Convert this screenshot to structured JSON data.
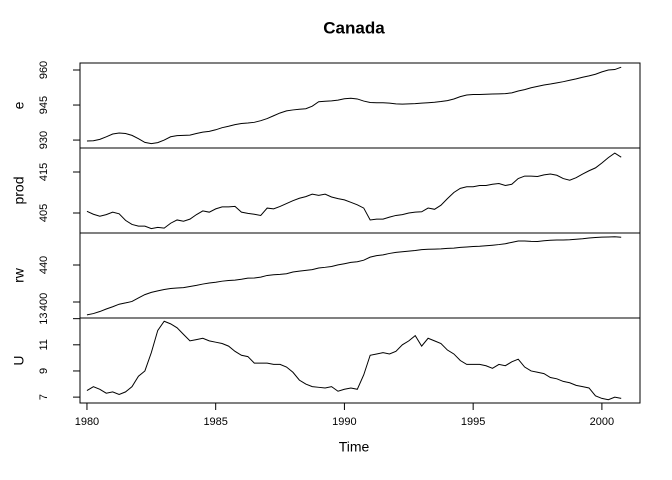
{
  "chart_data": {
    "type": "line",
    "title": "Canada",
    "xlabel": "Time",
    "x": [
      1980,
      1980.25,
      1980.5,
      1980.75,
      1981,
      1981.25,
      1981.5,
      1981.75,
      1982,
      1982.25,
      1982.5,
      1982.75,
      1983,
      1983.25,
      1983.5,
      1983.75,
      1984,
      1984.25,
      1984.5,
      1984.75,
      1985,
      1985.25,
      1985.5,
      1985.75,
      1986,
      1986.25,
      1986.5,
      1986.75,
      1987,
      1987.25,
      1987.5,
      1987.75,
      1988,
      1988.25,
      1988.5,
      1988.75,
      1989,
      1989.25,
      1989.5,
      1989.75,
      1990,
      1990.25,
      1990.5,
      1990.75,
      1991,
      1991.25,
      1991.5,
      1991.75,
      1992,
      1992.25,
      1992.5,
      1992.75,
      1993,
      1993.25,
      1993.5,
      1993.75,
      1994,
      1994.25,
      1994.5,
      1994.75,
      1995,
      1995.25,
      1995.5,
      1995.75,
      1996,
      1996.25,
      1996.5,
      1996.75,
      1997,
      1997.25,
      1997.5,
      1997.75,
      1998,
      1998.25,
      1998.5,
      1998.75,
      1999,
      1999.25,
      1999.5,
      1999.75,
      2000,
      2000.25,
      2000.5,
      2000.75
    ],
    "xlim": [
      1979.73,
      2001.48
    ],
    "xticks": [
      1980,
      1985,
      1990,
      1995,
      2000
    ],
    "color": "#000000",
    "series": [
      {
        "name": "e",
        "ylim": [
          926.6,
          963
        ],
        "yticks": [
          930,
          945,
          960
        ],
        "values": [
          929.6,
          929.7,
          930.3,
          931.4,
          932.6,
          933.0,
          932.8,
          932.0,
          930.6,
          929.0,
          928.5,
          928.9,
          930.0,
          931.4,
          931.9,
          932.0,
          932.1,
          932.8,
          933.4,
          933.7,
          934.4,
          935.3,
          935.9,
          936.6,
          937.1,
          937.3,
          937.6,
          938.3,
          939.2,
          940.4,
          941.6,
          942.5,
          942.9,
          943.2,
          943.4,
          944.5,
          946.4,
          946.6,
          946.8,
          947.1,
          947.7,
          947.9,
          947.6,
          946.7,
          946.1,
          946.0,
          946.0,
          945.8,
          945.5,
          945.4,
          945.5,
          945.6,
          945.8,
          946.0,
          946.2,
          946.5,
          946.9,
          947.6,
          948.6,
          949.3,
          949.5,
          949.5,
          949.6,
          949.7,
          949.8,
          949.9,
          950.2,
          951.0,
          951.6,
          952.4,
          953.0,
          953.6,
          954.0,
          954.5,
          955.0,
          955.6,
          956.2,
          956.9,
          957.5,
          958.2,
          959.2,
          960.0,
          960.2,
          961.2
        ]
      },
      {
        "name": "prod",
        "ylim": [
          400.12,
          420.85
        ],
        "yticks": [
          405,
          415
        ],
        "values": [
          405.4,
          404.7,
          404.2,
          404.6,
          405.2,
          404.8,
          403.2,
          402.2,
          401.8,
          401.8,
          401.2,
          401.5,
          401.3,
          402.5,
          403.3,
          403.0,
          403.5,
          404.6,
          405.5,
          405.2,
          406.0,
          406.5,
          406.5,
          406.6,
          405.2,
          404.9,
          404.7,
          404.4,
          406.2,
          406.0,
          406.6,
          407.3,
          408.0,
          408.6,
          409.0,
          409.6,
          409.3,
          409.6,
          408.9,
          408.5,
          408.2,
          407.6,
          407.0,
          406.2,
          403.3,
          403.5,
          403.5,
          404.0,
          404.4,
          404.6,
          405.0,
          405.2,
          405.3,
          406.2,
          405.9,
          406.9,
          408.5,
          410.0,
          411.0,
          411.4,
          411.4,
          411.7,
          411.7,
          412.0,
          412.2,
          411.7,
          412.0,
          413.4,
          414.0,
          414.0,
          413.9,
          414.3,
          414.5,
          414.2,
          413.4,
          413.0,
          413.6,
          414.5,
          415.3,
          416.0,
          417.2,
          418.5,
          419.6,
          418.6
        ]
      },
      {
        "name": "rw",
        "ylim": [
          382.7,
          474.6
        ],
        "yticks": [
          400,
          440
        ],
        "values": [
          386.1,
          387.5,
          389.7,
          392.4,
          394.9,
          397.6,
          399.0,
          400.6,
          404.4,
          408.0,
          410.4,
          412.0,
          413.5,
          414.6,
          415.1,
          415.6,
          416.8,
          418.0,
          419.4,
          420.5,
          421.4,
          422.5,
          423.2,
          423.6,
          424.6,
          425.8,
          426.0,
          426.9,
          428.7,
          429.5,
          429.9,
          430.5,
          432.4,
          433.4,
          434.2,
          435.0,
          436.8,
          437.5,
          438.4,
          440.1,
          441.4,
          442.8,
          443.5,
          445.2,
          448.5,
          450.1,
          451.0,
          452.5,
          453.6,
          454.3,
          455.0,
          455.7,
          456.6,
          457.0,
          457.2,
          457.5,
          458.0,
          458.3,
          459.0,
          459.5,
          460.0,
          460.3,
          460.8,
          461.4,
          462.1,
          463.0,
          464.5,
          466.0,
          465.9,
          465.5,
          465.4,
          466.2,
          466.8,
          467.0,
          467.1,
          467.3,
          467.8,
          468.4,
          469.2,
          469.8,
          470.1,
          470.3,
          470.6,
          470.0
        ]
      },
      {
        "name": "U",
        "ylim": [
          6.55,
          13.05
        ],
        "yticks": [
          7,
          9,
          11,
          13
        ],
        "values": [
          7.5,
          7.8,
          7.6,
          7.3,
          7.4,
          7.2,
          7.4,
          7.8,
          8.6,
          9.0,
          10.4,
          12.1,
          12.8,
          12.6,
          12.3,
          11.8,
          11.3,
          11.4,
          11.5,
          11.3,
          11.2,
          11.1,
          10.9,
          10.5,
          10.2,
          10.1,
          9.6,
          9.6,
          9.6,
          9.5,
          9.5,
          9.3,
          8.9,
          8.3,
          8.0,
          7.8,
          7.75,
          7.7,
          7.8,
          7.45,
          7.6,
          7.7,
          7.6,
          8.7,
          10.2,
          10.3,
          10.4,
          10.3,
          10.5,
          11.0,
          11.3,
          11.7,
          10.9,
          11.5,
          11.3,
          11.1,
          10.6,
          10.3,
          9.8,
          9.5,
          9.5,
          9.5,
          9.4,
          9.2,
          9.5,
          9.4,
          9.7,
          9.9,
          9.3,
          9.0,
          8.9,
          8.8,
          8.5,
          8.4,
          8.2,
          8.1,
          7.9,
          7.8,
          7.7,
          7.1,
          6.9,
          6.8,
          7.0,
          6.9
        ]
      }
    ]
  }
}
